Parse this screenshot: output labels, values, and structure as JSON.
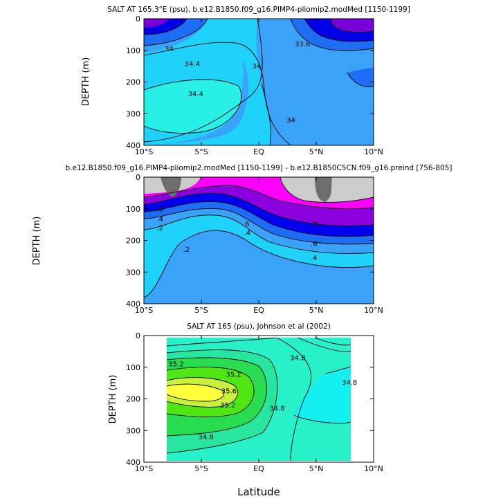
{
  "figure": {
    "xlabel": "Latitude"
  },
  "chart_data": [
    {
      "type": "contour",
      "title": "SALT AT 165.3°E (psu), b.e12.B1850.f09_g16.PIMP4-pliomip2.modMed [1150-1199]",
      "xlabel": "",
      "ylabel": "DEPTH (m)",
      "xlim": [
        -10,
        10
      ],
      "ylim": [
        400,
        0
      ],
      "x_ticks": [
        "10°S",
        "5°S",
        "EQ",
        "5°N",
        "10°N"
      ],
      "y_ticks": [
        "0",
        "100",
        "200",
        "300",
        "400"
      ],
      "contour_labels": [
        {
          "text": "34",
          "lat": -7.8,
          "depth": 95
        },
        {
          "text": "34.4",
          "lat": -5.8,
          "depth": 142
        },
        {
          "text": "34.4",
          "lat": -5.5,
          "depth": 237
        },
        {
          "text": "34",
          "lat": -0.2,
          "depth": 150
        },
        {
          "text": "33.6",
          "lat": 3.8,
          "depth": 80
        },
        {
          "text": "34",
          "lat": 2.8,
          "depth": 320
        }
      ],
      "fill_palette": [
        "#7a00d8",
        "#0000e6",
        "#1e6ef5",
        "#3aa2f8",
        "#1ed2fa",
        "#28f0e6"
      ]
    },
    {
      "type": "contour",
      "title": "b.e12.B1850.f09_g16.PIMP4-pliomip2.modMed [1150-1199] - b.e12.B1850C5CN.f09_g16.preind [756-805]",
      "xlabel": "",
      "ylabel": "DEPTH (m)",
      "xlim": [
        -10,
        10
      ],
      "ylim": [
        400,
        0
      ],
      "x_ticks": [
        "10°S",
        "5°S",
        "EQ",
        "5°N",
        "10°N"
      ],
      "y_ticks": [
        "0",
        "100",
        "200",
        "300",
        "400"
      ],
      "contour_labels": [
        {
          "text": ".8",
          "lat": -8.6,
          "depth": 100
        },
        {
          "text": ".4",
          "lat": -8.6,
          "depth": 132
        },
        {
          "text": ".2",
          "lat": -8.6,
          "depth": 160
        },
        {
          "text": ".2",
          "lat": -6.3,
          "depth": 228
        },
        {
          "text": ".8",
          "lat": 4.9,
          "depth": 145
        },
        {
          "text": ".6",
          "lat": -1.1,
          "depth": 148
        },
        {
          "text": ".4",
          "lat": -1.0,
          "depth": 176
        },
        {
          "text": ".6",
          "lat": 4.8,
          "depth": 210
        },
        {
          "text": ".4",
          "lat": 4.8,
          "depth": 255
        }
      ],
      "fill_palette": [
        "#6e6e6e",
        "#cccccc",
        "#ff00ff",
        "#8c00e0",
        "#0000f0",
        "#1e6ef5",
        "#3aa2f8",
        "#1ed2fa"
      ]
    },
    {
      "type": "contour",
      "title": "SALT AT 165 (psu), Johnson et al (2002)",
      "xlabel": "Latitude",
      "ylabel": "DEPTH (m)",
      "xlim": [
        -10,
        10
      ],
      "ylim": [
        400,
        0
      ],
      "data_extent_lat": [
        -8,
        8
      ],
      "x_ticks": [
        "10°S",
        "5°S",
        "EQ",
        "5°N",
        "10°N"
      ],
      "y_ticks": [
        "0",
        "100",
        "200",
        "300",
        "400"
      ],
      "contour_labels": [
        {
          "text": "35.2",
          "lat": -7.2,
          "depth": 90
        },
        {
          "text": "35.2",
          "lat": -2.2,
          "depth": 122
        },
        {
          "text": "34.8",
          "lat": 3.4,
          "depth": 70
        },
        {
          "text": "34.8",
          "lat": 7.9,
          "depth": 148
        },
        {
          "text": "35.6",
          "lat": -2.6,
          "depth": 175
        },
        {
          "text": "35.2",
          "lat": -2.7,
          "depth": 220
        },
        {
          "text": "34.8",
          "lat": 1.6,
          "depth": 230
        },
        {
          "text": "34.8",
          "lat": -4.6,
          "depth": 320
        }
      ],
      "fill_palette": [
        "#ffff3c",
        "#c8f03c",
        "#50e614",
        "#28dc50",
        "#28e6a0",
        "#28f0c8",
        "#14f0f0"
      ]
    }
  ]
}
